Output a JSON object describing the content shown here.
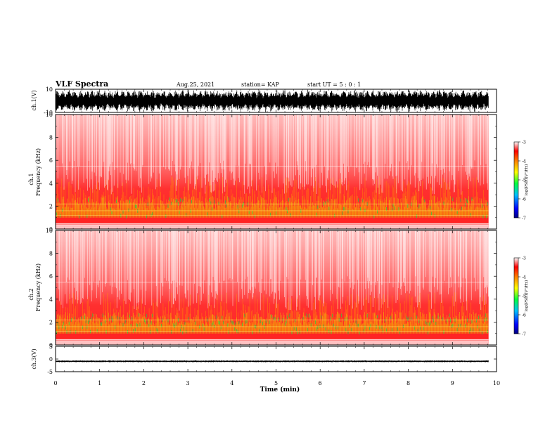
{
  "header": {
    "title": "VLF Spectra",
    "date": "Aug.25, 2021",
    "station": "station= KAP",
    "start": "start  UT =   5 : 0  : 1"
  },
  "chart_data": [
    {
      "type": "line",
      "panel": "ch1-waveform",
      "ylabel": "ch.1(V)",
      "ylim": [
        -10,
        10
      ],
      "yticks": [
        "10",
        "-10"
      ],
      "xlim": [
        0,
        10
      ],
      "description_values": {
        "typical_range_V": [
          -8,
          8
        ]
      }
    },
    {
      "type": "heatmap",
      "panel": "ch1-spectrogram",
      "ylabel": "ch.1\nFrequency  (kHz)",
      "ylabel_line1": "ch.1",
      "ylabel_line2": "Frequency  (kHz)",
      "ylim": [
        0,
        10
      ],
      "yticks": [
        "0",
        "2",
        "4",
        "6",
        "8",
        "10"
      ],
      "xlim": [
        0,
        10
      ],
      "band_edges_kHz": [
        0.5,
        1.0,
        1.5,
        2.5,
        3.5,
        5.5
      ],
      "colorbar": {
        "label": "log(PSD)(V²/Hz)",
        "range": [
          -7,
          -3
        ],
        "ticks": [
          "-3",
          "-4",
          "-5",
          "-6",
          "-7"
        ]
      }
    },
    {
      "type": "heatmap",
      "panel": "ch2-spectrogram",
      "ylabel_line1": "ch.2",
      "ylabel_line2": "Frequency  (kHz)",
      "ylim": [
        0,
        10
      ],
      "yticks": [
        "0",
        "2",
        "4",
        "6",
        "8",
        "10"
      ],
      "xlim": [
        0,
        10
      ],
      "band_edges_kHz": [
        0.5,
        1.0,
        1.8,
        2.8,
        3.5,
        5.5
      ],
      "colorbar": {
        "label": "log(PSD)(V²/Hz)",
        "range": [
          -7,
          -3
        ],
        "ticks": [
          "-3",
          "-4",
          "-5",
          "-6",
          "-7"
        ]
      }
    },
    {
      "type": "line",
      "panel": "ch3-waveform",
      "ylabel": "ch.3(V)",
      "ylim": [
        -5,
        5
      ],
      "yticks": [
        "5",
        "0",
        "-5"
      ],
      "xlim": [
        0,
        10
      ],
      "description_values": {
        "typical_range_V": [
          -1.2,
          -0.6
        ]
      }
    }
  ],
  "xaxis": {
    "label": "Time  (min)",
    "ticks": [
      "0",
      "1",
      "2",
      "3",
      "4",
      "5",
      "6",
      "7",
      "8",
      "9",
      "10"
    ]
  },
  "colors": {
    "low": "#0000ff",
    "mid": "#00cc44",
    "high": "#ff0000",
    "top": "#ffffff"
  }
}
